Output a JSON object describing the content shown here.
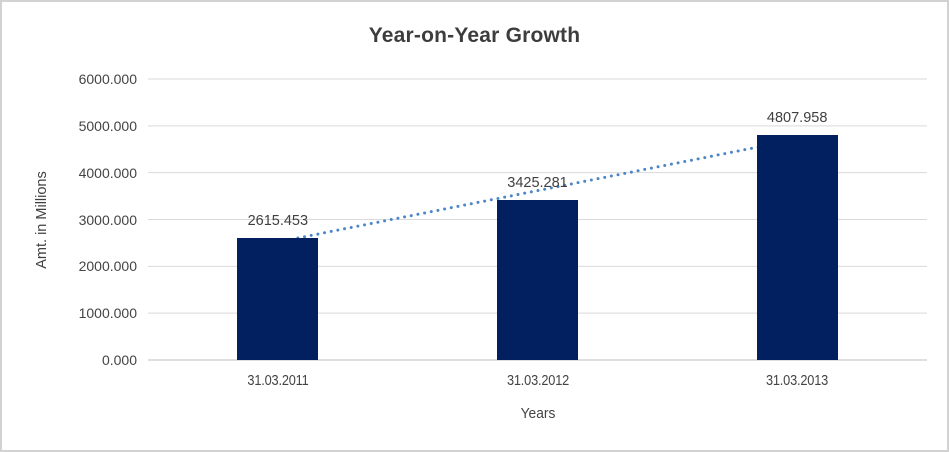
{
  "chart_data": {
    "type": "bar",
    "title": "Year-on-Year Growth",
    "categories": [
      "31.03.2011",
      "31.03.2012",
      "31.03.2013"
    ],
    "values": [
      2615.453,
      3425.281,
      4807.958
    ],
    "data_labels": [
      "2615.453",
      "3425.281",
      "4807.958"
    ],
    "xlabel": "Years",
    "ylabel": "Amt. in Millions",
    "ylim": [
      0,
      6000
    ],
    "ytick_step": 1000,
    "ytick_labels": [
      "0.000",
      "1000.000",
      "2000.000",
      "3000.000",
      "4000.000",
      "5000.000",
      "6000.000"
    ],
    "grid": true,
    "legend": false,
    "bar_color": "#022060",
    "gridline_color": "#d9d9d9",
    "axisline_color": "#bfbfbf",
    "trendline": {
      "type": "linear",
      "style": "dotted",
      "color": "#4a86c8",
      "start_value": 2520.0,
      "end_value": 4712.5
    }
  }
}
